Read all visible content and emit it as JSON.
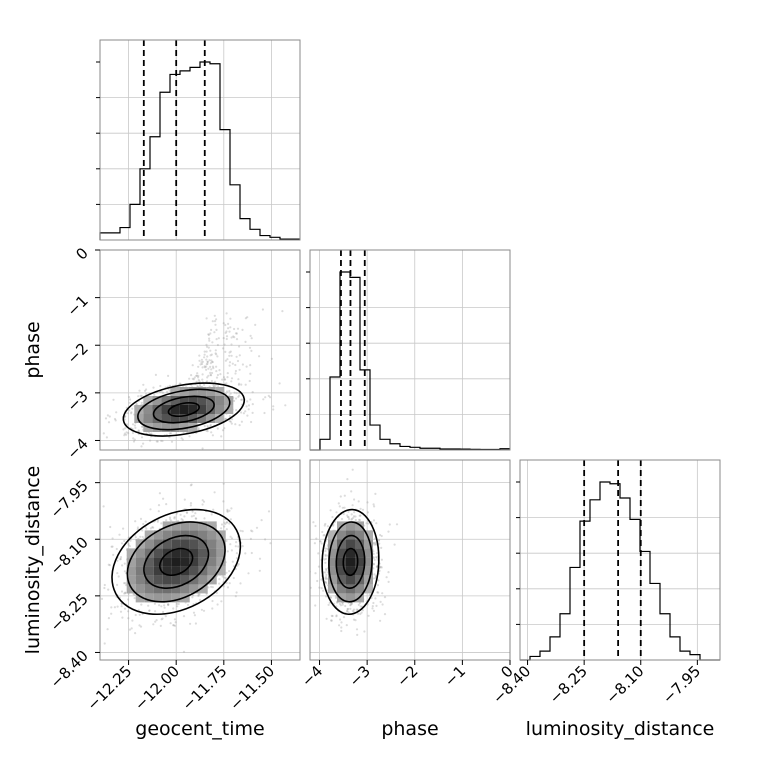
{
  "chart_data": {
    "type": "corner",
    "parameters": [
      "geocent_time",
      "phase",
      "luminosity_distance"
    ],
    "axis_labels": {
      "geocent_time": "geocent_time",
      "phase": "phase",
      "luminosity_distance": "luminosity_distance"
    },
    "ranges": {
      "geocent_time": [
        -12.4,
        -11.35
      ],
      "phase": [
        -4.2,
        0.0
      ],
      "luminosity_distance": [
        -8.42,
        -7.89
      ]
    },
    "ticks": {
      "geocent_time": [
        -12.25,
        -12.0,
        -11.75,
        -11.5
      ],
      "phase": [
        -4,
        -3,
        -2,
        -1,
        0
      ],
      "luminosity_distance": [
        -8.4,
        -8.25,
        -8.1,
        -7.95
      ]
    },
    "tick_labels": {
      "geocent_time": [
        "−12.25",
        "−12.00",
        "−11.75",
        "−11.50"
      ],
      "phase": [
        "−4",
        "−3",
        "−2",
        "−1",
        "0"
      ],
      "luminosity_distance": [
        "−8.40",
        "−8.25",
        "−8.10",
        "−7.95"
      ]
    },
    "quantiles": {
      "geocent_time": [
        -12.17,
        -12.0,
        -11.85
      ],
      "phase": [
        -3.55,
        -3.35,
        -3.05
      ],
      "luminosity_distance": [
        -8.25,
        -8.16,
        -8.1
      ]
    },
    "histograms": {
      "geocent_time": {
        "x0": -12.4,
        "bin_width": 0.0525,
        "counts": [
          0.04,
          0.04,
          0.07,
          0.2,
          0.4,
          0.58,
          0.83,
          0.93,
          0.95,
          0.97,
          1.0,
          0.99,
          0.62,
          0.31,
          0.12,
          0.06,
          0.025,
          0.015,
          0.005,
          0.005
        ]
      },
      "phase": {
        "x0": -4.2,
        "bin_width": 0.21,
        "counts": [
          0.0,
          0.06,
          0.41,
          1.0,
          0.97,
          0.45,
          0.14,
          0.06,
          0.035,
          0.02,
          0.015,
          0.01,
          0.01,
          0.006,
          0.006,
          0.005,
          0.004,
          0.003,
          0.003,
          0.007
        ]
      },
      "luminosity_distance": {
        "x0": -8.42,
        "bin_width": 0.0265,
        "counts": [
          0.0,
          0.02,
          0.05,
          0.13,
          0.26,
          0.52,
          0.78,
          0.9,
          1.0,
          0.99,
          0.91,
          0.79,
          0.61,
          0.43,
          0.26,
          0.13,
          0.05,
          0.03,
          0.0,
          0.0
        ]
      }
    },
    "pair_samples": {
      "phase_vs_geocent_time": {
        "center": [
          -11.96,
          -3.35
        ],
        "sd": [
          0.16,
          0.28
        ],
        "rho": 0.35,
        "skew_tail": "towards upper right"
      },
      "luminosity_distance_vs_geocent_time": {
        "center": [
          -12.0,
          -8.16
        ],
        "sd": [
          0.17,
          0.07
        ],
        "rho": 0.3
      },
      "luminosity_distance_vs_phase": {
        "center": [
          -3.35,
          -8.16
        ],
        "sd": [
          0.3,
          0.07
        ],
        "rho": 0.05
      }
    },
    "contour_levels": [
      0.12,
      0.39,
      0.68,
      0.86
    ],
    "grid": true,
    "legend": "none",
    "colors": {
      "line": "#000000",
      "points": "#9a9a9a",
      "grid": "#c8c8c8",
      "frame": "#8a8a8a"
    }
  }
}
